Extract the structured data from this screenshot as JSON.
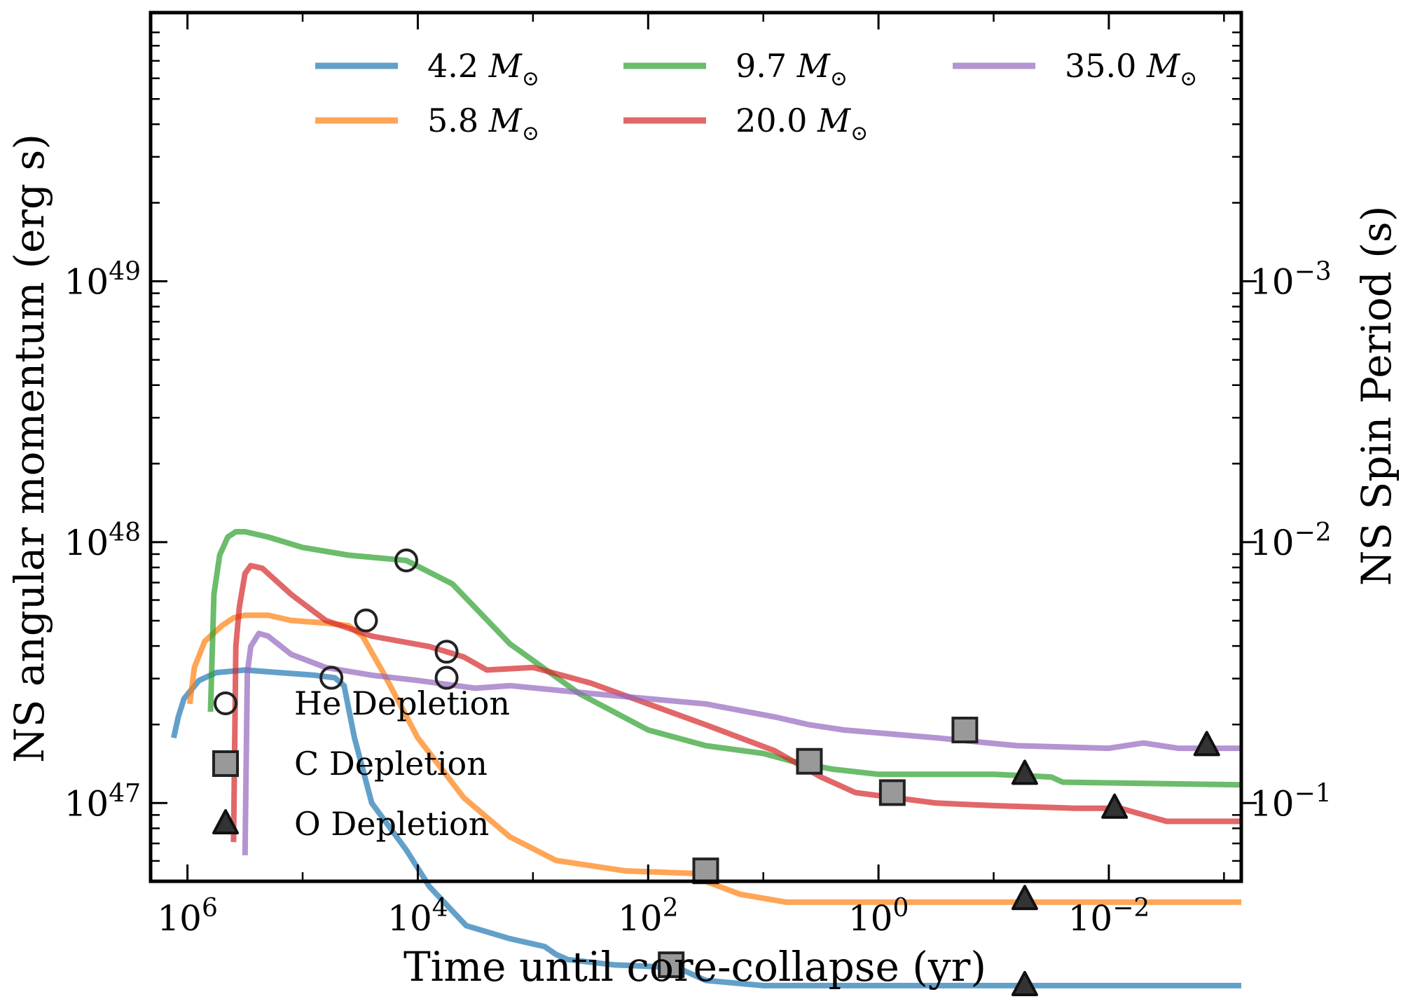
{
  "chart_data": {
    "type": "line",
    "xlabel": "Time until core-collapse (yr)",
    "ylabel": "NS angular momentum (erg s)",
    "ylabel_right": "NS Spin Period (s)",
    "x_scale": "log-reversed",
    "y_scale": "log",
    "xlim_log10": [
      6.32,
      -3.15
    ],
    "ylim_log10": [
      46.7,
      50.03
    ],
    "x_ticks": [
      {
        "exp": 6,
        "label": "10",
        "sup": "6"
      },
      {
        "exp": 4,
        "label": "10",
        "sup": "4"
      },
      {
        "exp": 2,
        "label": "10",
        "sup": "2"
      },
      {
        "exp": 0,
        "label": "10",
        "sup": "0"
      },
      {
        "exp": -2,
        "label": "10",
        "sup": "−2"
      }
    ],
    "y_ticks": [
      {
        "exp": 49,
        "label": "10",
        "sup": "49"
      },
      {
        "exp": 48,
        "label": "10",
        "sup": "48"
      },
      {
        "exp": 47,
        "label": "10",
        "sup": "47"
      }
    ],
    "y_right_ticks": [
      {
        "at_exp": 49,
        "label": "10",
        "sup": "−3"
      },
      {
        "at_exp": 48,
        "label": "10",
        "sup": "−2"
      },
      {
        "at_exp": 47,
        "label": "10",
        "sup": "−1"
      }
    ],
    "series": [
      {
        "name": "4.2",
        "unit": "M",
        "color": "#1f77b4",
        "points": [
          [
            6.12,
            47.25
          ],
          [
            6.08,
            47.33
          ],
          [
            6.03,
            47.4
          ],
          [
            5.9,
            47.47
          ],
          [
            5.75,
            47.5
          ],
          [
            5.5,
            47.51
          ],
          [
            5.2,
            47.5
          ],
          [
            4.9,
            47.49
          ],
          [
            4.72,
            47.48
          ],
          [
            4.64,
            47.45
          ],
          [
            4.55,
            47.25
          ],
          [
            4.4,
            47.0
          ],
          [
            4.1,
            46.82
          ],
          [
            3.9,
            46.68
          ],
          [
            3.58,
            46.53
          ],
          [
            3.2,
            46.48
          ],
          [
            2.9,
            46.45
          ],
          [
            2.8,
            46.42
          ],
          [
            2.7,
            46.4
          ],
          [
            2.3,
            46.38
          ],
          [
            1.8,
            46.37
          ],
          [
            1.7,
            46.36
          ],
          [
            1.5,
            46.32
          ],
          [
            1.0,
            46.3
          ],
          [
            0.5,
            46.3
          ],
          [
            -0.5,
            46.3
          ],
          [
            -1.6,
            46.3
          ],
          [
            -3.15,
            46.3
          ]
        ],
        "markers": [
          {
            "type": "circle",
            "x": 4.75,
            "y": 47.48
          },
          {
            "type": "square",
            "x": 1.8,
            "y": 46.38
          },
          {
            "type": "triangle",
            "x": -1.27,
            "y": 46.3
          }
        ]
      },
      {
        "name": "5.8",
        "unit": "M",
        "color": "#ff7f0e",
        "points": [
          [
            5.98,
            47.38
          ],
          [
            5.94,
            47.52
          ],
          [
            5.85,
            47.62
          ],
          [
            5.7,
            47.68
          ],
          [
            5.6,
            47.71
          ],
          [
            5.5,
            47.72
          ],
          [
            5.3,
            47.72
          ],
          [
            5.1,
            47.7
          ],
          [
            4.8,
            47.69
          ],
          [
            4.6,
            47.68
          ],
          [
            4.48,
            47.64
          ],
          [
            4.3,
            47.5
          ],
          [
            4.0,
            47.25
          ],
          [
            3.6,
            47.02
          ],
          [
            3.2,
            46.87
          ],
          [
            2.8,
            46.78
          ],
          [
            2.2,
            46.74
          ],
          [
            1.6,
            46.73
          ],
          [
            1.5,
            46.7
          ],
          [
            1.2,
            46.65
          ],
          [
            0.8,
            46.62
          ],
          [
            0.5,
            46.62
          ],
          [
            -1.0,
            46.62
          ],
          [
            -3.15,
            46.62
          ]
        ],
        "markers": [
          {
            "type": "circle",
            "x": 4.45,
            "y": 47.7
          },
          {
            "type": "square",
            "x": 1.5,
            "y": 46.74
          },
          {
            "type": "triangle",
            "x": -1.27,
            "y": 46.63
          }
        ]
      },
      {
        "name": "9.7",
        "unit": "M",
        "color": "#2ca02c",
        "points": [
          [
            5.8,
            47.35
          ],
          [
            5.77,
            47.8
          ],
          [
            5.72,
            47.95
          ],
          [
            5.65,
            48.02
          ],
          [
            5.58,
            48.04
          ],
          [
            5.5,
            48.04
          ],
          [
            5.3,
            48.02
          ],
          [
            5.0,
            47.98
          ],
          [
            4.6,
            47.95
          ],
          [
            4.1,
            47.93
          ],
          [
            3.7,
            47.84
          ],
          [
            3.2,
            47.61
          ],
          [
            2.6,
            47.42
          ],
          [
            2.0,
            47.28
          ],
          [
            1.5,
            47.22
          ],
          [
            1.0,
            47.19
          ],
          [
            0.75,
            47.16
          ],
          [
            0.4,
            47.13
          ],
          [
            0.0,
            47.11
          ],
          [
            -1.0,
            47.11
          ],
          [
            -1.5,
            47.1
          ],
          [
            -1.6,
            47.08
          ],
          [
            -3.15,
            47.07
          ]
        ],
        "markers": [
          {
            "type": "circle",
            "x": 4.1,
            "y": 47.93
          },
          {
            "type": "square",
            "x": 0.6,
            "y": 47.16
          },
          {
            "type": "triangle",
            "x": -1.27,
            "y": 47.11
          }
        ]
      },
      {
        "name": "20.0",
        "unit": "M",
        "color": "#d62728",
        "points": [
          [
            5.6,
            46.85
          ],
          [
            5.58,
            47.6
          ],
          [
            5.55,
            47.75
          ],
          [
            5.5,
            47.88
          ],
          [
            5.45,
            47.91
          ],
          [
            5.35,
            47.9
          ],
          [
            5.1,
            47.8
          ],
          [
            4.8,
            47.7
          ],
          [
            4.4,
            47.64
          ],
          [
            3.9,
            47.6
          ],
          [
            3.6,
            47.56
          ],
          [
            3.4,
            47.51
          ],
          [
            3.0,
            47.52
          ],
          [
            2.5,
            47.46
          ],
          [
            2.0,
            47.38
          ],
          [
            1.5,
            47.3
          ],
          [
            0.9,
            47.2
          ],
          [
            0.5,
            47.1
          ],
          [
            0.2,
            47.04
          ],
          [
            -0.5,
            47.0
          ],
          [
            -1.0,
            46.99
          ],
          [
            -1.7,
            46.98
          ],
          [
            -2.1,
            46.98
          ],
          [
            -2.5,
            46.93
          ],
          [
            -3.15,
            46.93
          ]
        ],
        "markers": [
          {
            "type": "circle",
            "x": 3.75,
            "y": 47.58
          },
          {
            "type": "square",
            "x": -0.12,
            "y": 47.04
          },
          {
            "type": "triangle",
            "x": -2.05,
            "y": 46.98
          }
        ]
      },
      {
        "name": "35.0",
        "unit": "M",
        "color": "#9467bd",
        "points": [
          [
            5.5,
            46.8
          ],
          [
            5.48,
            47.5
          ],
          [
            5.45,
            47.6
          ],
          [
            5.38,
            47.65
          ],
          [
            5.3,
            47.64
          ],
          [
            5.1,
            47.57
          ],
          [
            4.8,
            47.52
          ],
          [
            4.4,
            47.49
          ],
          [
            4.0,
            47.47
          ],
          [
            3.5,
            47.44
          ],
          [
            3.2,
            47.45
          ],
          [
            2.5,
            47.42
          ],
          [
            1.5,
            47.38
          ],
          [
            0.9,
            47.33
          ],
          [
            0.6,
            47.3
          ],
          [
            0.3,
            47.28
          ],
          [
            -0.5,
            47.25
          ],
          [
            -1.2,
            47.22
          ],
          [
            -2.0,
            47.21
          ],
          [
            -2.3,
            47.23
          ],
          [
            -2.6,
            47.21
          ],
          [
            -3.15,
            47.21
          ]
        ],
        "markers": [
          {
            "type": "circle",
            "x": 3.75,
            "y": 47.48
          },
          {
            "type": "square",
            "x": -0.75,
            "y": 47.28
          },
          {
            "type": "triangle",
            "x": -2.85,
            "y": 47.22
          }
        ]
      }
    ],
    "marker_legend": [
      {
        "type": "circle",
        "label": "He Depletion"
      },
      {
        "type": "square",
        "label": "C Depletion"
      },
      {
        "type": "triangle",
        "label": "O Depletion"
      }
    ]
  }
}
